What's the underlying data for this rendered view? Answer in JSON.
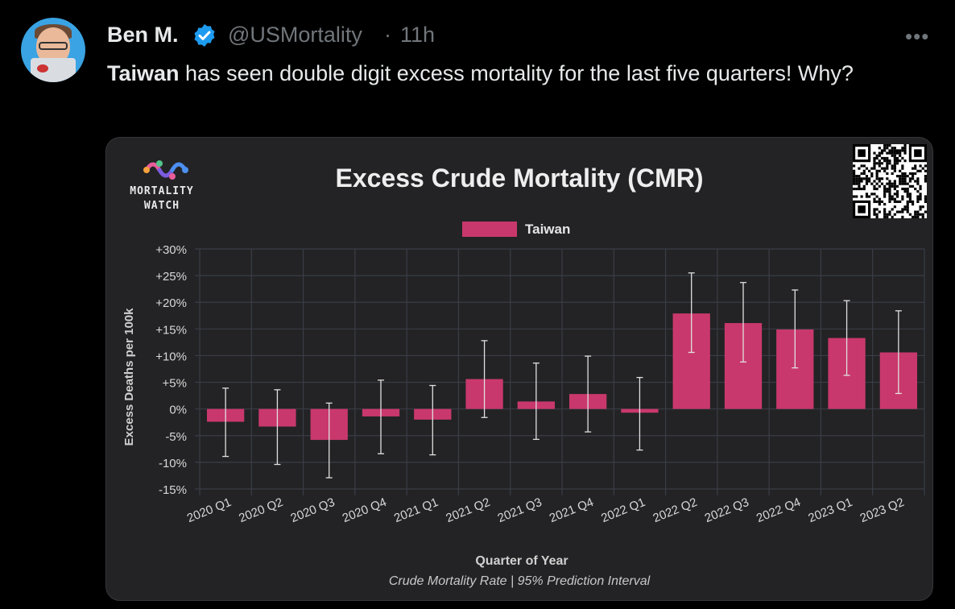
{
  "tweet": {
    "author_name": "Ben M.",
    "handle": "@USMortality",
    "separator": "·",
    "time": "11h",
    "more_label": "•••",
    "text_bold": "Taiwan",
    "text_rest": " has seen double digit excess mortality for the last five quarters! Why?"
  },
  "card": {
    "logo_line1": "MORTALITY",
    "logo_line2": "WATCH",
    "footnote": "Crude Mortality Rate | 95% Prediction Interval"
  },
  "icons": {
    "verified": "verified-badge-icon",
    "more": "more-options-icon",
    "qr": "qr-code"
  },
  "colors": {
    "bar": "#c9386c",
    "verified": "#1d9bf0",
    "card_bg": "#232325"
  },
  "chart_data": {
    "type": "bar",
    "title": "Excess Crude Mortality (CMR)",
    "xlabel": "Quarter of Year",
    "ylabel": "Excess Deaths per 100k",
    "ylim": [
      -15,
      30
    ],
    "yticks": [
      "+30%",
      "+25%",
      "+20%",
      "+15%",
      "+10%",
      "+5%",
      "0%",
      "-5%",
      "-10%",
      "-15%"
    ],
    "ytick_values": [
      30,
      25,
      20,
      15,
      10,
      5,
      0,
      -5,
      -10,
      -15
    ],
    "grid": true,
    "legend_position": "top-center",
    "categories": [
      "2020 Q1",
      "2020 Q2",
      "2020 Q3",
      "2020 Q4",
      "2021 Q1",
      "2021 Q2",
      "2021 Q3",
      "2021 Q4",
      "2022 Q1",
      "2022 Q2",
      "2022 Q3",
      "2022 Q4",
      "2023 Q1",
      "2023 Q2"
    ],
    "series": [
      {
        "name": "Taiwan",
        "values": [
          -2.4,
          -3.3,
          -5.8,
          -1.4,
          -2.0,
          5.6,
          1.4,
          2.8,
          -0.7,
          17.9,
          16.1,
          14.9,
          13.3,
          10.6
        ],
        "error_low": [
          -8.9,
          -10.4,
          -12.9,
          -8.4,
          -8.6,
          -1.6,
          -5.7,
          -4.3,
          -7.7,
          10.6,
          8.8,
          7.7,
          6.3,
          2.9
        ],
        "error_high": [
          3.9,
          3.6,
          1.1,
          5.4,
          4.4,
          12.8,
          8.6,
          9.9,
          5.9,
          25.5,
          23.7,
          22.3,
          20.3,
          18.4
        ]
      }
    ]
  }
}
